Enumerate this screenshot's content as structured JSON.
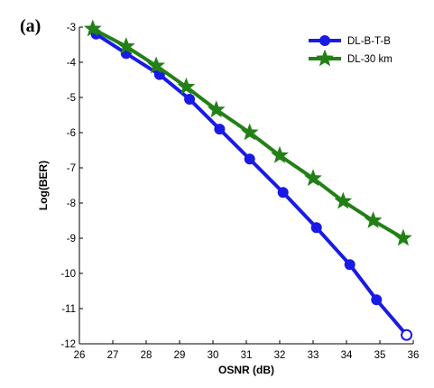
{
  "panel_label": "(a)",
  "colors": {
    "series_1": "#1a1ae6",
    "series_2": "#238016",
    "axis": "#000000"
  },
  "chart_data": {
    "type": "line",
    "xlabel": "OSNR (dB)",
    "ylabel": "Log(BER)",
    "xlim": [
      26,
      36
    ],
    "ylim": [
      -12,
      -3
    ],
    "xticks": [
      26,
      27,
      28,
      29,
      30,
      31,
      32,
      33,
      34,
      35,
      36
    ],
    "yticks": [
      -3,
      -4,
      -5,
      -6,
      -7,
      -8,
      -9,
      -10,
      -11,
      -12
    ],
    "grid": false,
    "legend_position": "top-right",
    "series": [
      {
        "name": "DL-B-T-B",
        "marker": "circle",
        "x": [
          26.5,
          27.4,
          28.4,
          29.3,
          30.2,
          31.1,
          32.1,
          33.1,
          34.1,
          34.9,
          35.8
        ],
        "y": [
          -3.2,
          -3.75,
          -4.35,
          -5.05,
          -5.9,
          -6.75,
          -7.7,
          -8.7,
          -9.75,
          -10.75,
          -11.75
        ]
      },
      {
        "name": "DL-30 km",
        "marker": "star",
        "x": [
          26.4,
          27.4,
          28.3,
          29.2,
          30.1,
          31.1,
          32.0,
          33.0,
          33.9,
          34.8,
          35.7
        ],
        "y": [
          -3.05,
          -3.55,
          -4.1,
          -4.7,
          -5.35,
          -6.0,
          -6.65,
          -7.3,
          -7.95,
          -8.5,
          -9.0
        ]
      }
    ]
  }
}
